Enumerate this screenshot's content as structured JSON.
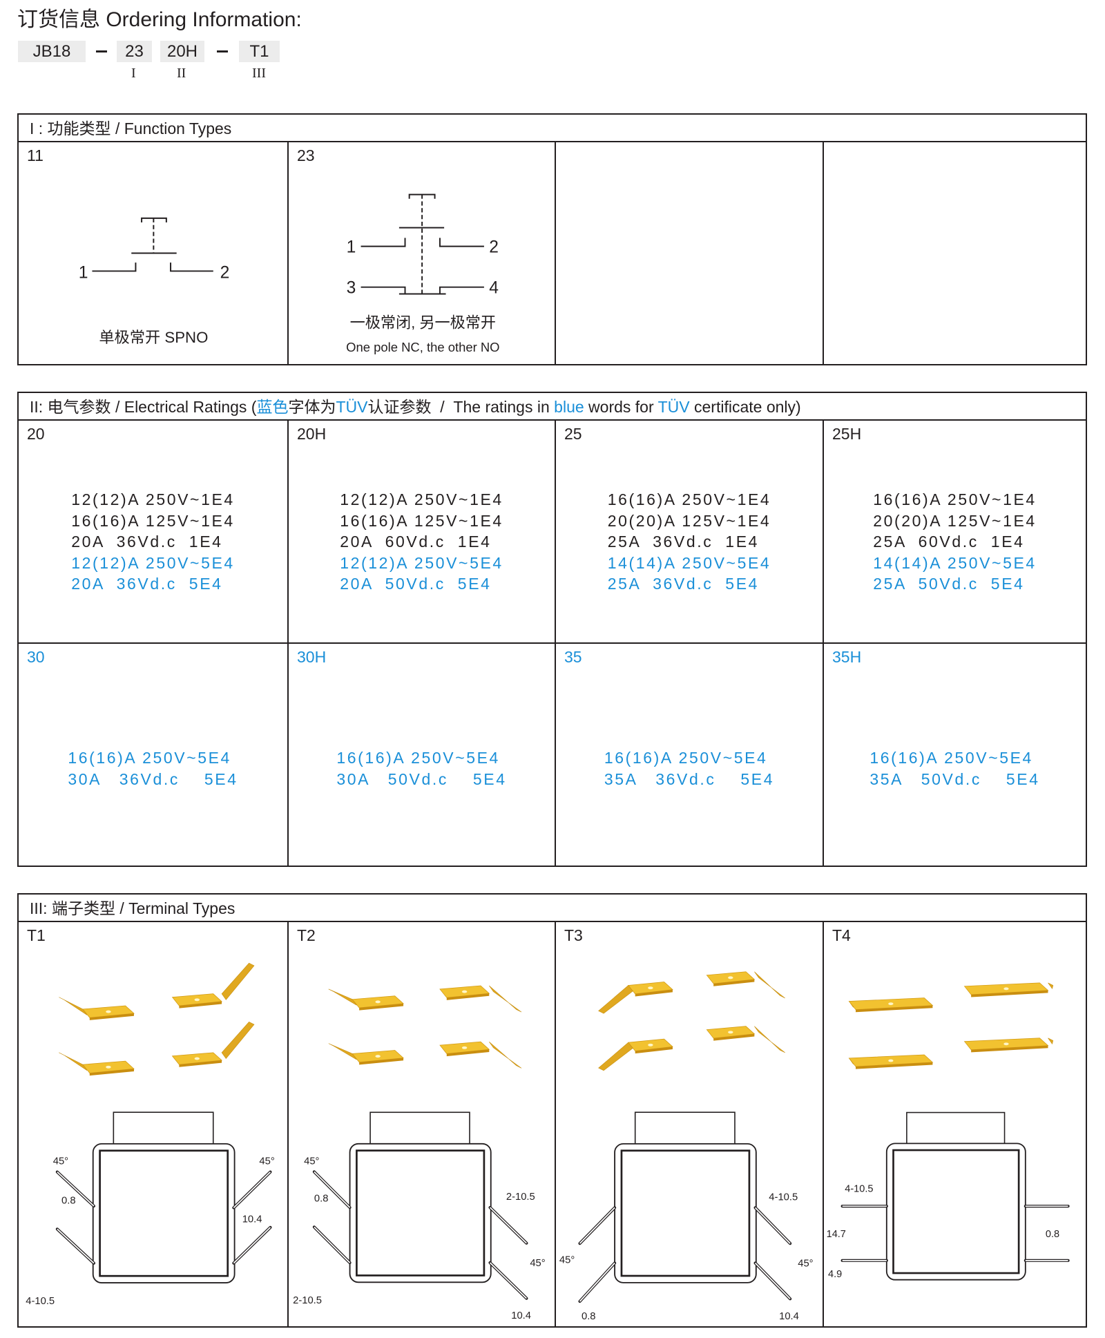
{
  "title": "订货信息 Ordering Information:",
  "code": {
    "parts": [
      "JB18",
      "23",
      "20H",
      "T1"
    ],
    "roman": [
      "I",
      "II",
      "III"
    ]
  },
  "function_types": {
    "header": "I : 功能类型 / Function Types",
    "cells": [
      {
        "label": "11",
        "terminals": [
          "1",
          "2"
        ],
        "caption": "单极常开 SPNO"
      },
      {
        "label": "23",
        "terminals": [
          "1",
          "2",
          "3",
          "4"
        ],
        "caption": "一极常闭, 另一极常开",
        "caption2": "One pole NC, the other NO"
      }
    ]
  },
  "electrical": {
    "header_parts": [
      {
        "t": "II: 电气参数 / Electrical Ratings (",
        "blue": false
      },
      {
        "t": "蓝色",
        "blue": true
      },
      {
        "t": "字体为",
        "blue": false
      },
      {
        "t": "TÜV",
        "blue": true
      },
      {
        "t": "认证参数  /  The ratings in ",
        "blue": false
      },
      {
        "t": "blue",
        "blue": true
      },
      {
        "t": " words for ",
        "blue": false
      },
      {
        "t": "TÜV",
        "blue": true
      },
      {
        "t": " certificate only)",
        "blue": false
      }
    ],
    "rows": [
      [
        {
          "label": "20",
          "blue_label": false,
          "lines": [
            {
              "t": "12(12)A 250V~1E4",
              "blue": false
            },
            {
              "t": "16(16)A 125V~1E4",
              "blue": false
            },
            {
              "t": "20A  36Vd.c  1E4",
              "blue": false
            },
            {
              "t": "12(12)A 250V~5E4",
              "blue": true
            },
            {
              "t": "20A  36Vd.c  5E4",
              "blue": true
            }
          ]
        },
        {
          "label": "20H",
          "blue_label": false,
          "lines": [
            {
              "t": "12(12)A 250V~1E4",
              "blue": false
            },
            {
              "t": "16(16)A 125V~1E4",
              "blue": false
            },
            {
              "t": "20A  60Vd.c  1E4",
              "blue": false
            },
            {
              "t": "12(12)A 250V~5E4",
              "blue": true
            },
            {
              "t": "20A  50Vd.c  5E4",
              "blue": true
            }
          ]
        },
        {
          "label": "25",
          "blue_label": false,
          "lines": [
            {
              "t": "16(16)A 250V~1E4",
              "blue": false
            },
            {
              "t": "20(20)A 125V~1E4",
              "blue": false
            },
            {
              "t": "25A  36Vd.c  1E4",
              "blue": false
            },
            {
              "t": "14(14)A 250V~5E4",
              "blue": true
            },
            {
              "t": "25A  36Vd.c  5E4",
              "blue": true
            }
          ]
        },
        {
          "label": "25H",
          "blue_label": false,
          "lines": [
            {
              "t": "16(16)A 250V~1E4",
              "blue": false
            },
            {
              "t": "20(20)A 125V~1E4",
              "blue": false
            },
            {
              "t": "25A  60Vd.c  1E4",
              "blue": false
            },
            {
              "t": "14(14)A 250V~5E4",
              "blue": true
            },
            {
              "t": "25A  50Vd.c  5E4",
              "blue": true
            }
          ]
        }
      ],
      [
        {
          "label": "30",
          "blue_label": true,
          "lines": [
            {
              "t": "16(16)A 250V~5E4",
              "blue": true
            },
            {
              "t": "30A   36Vd.c    5E4",
              "blue": true
            }
          ]
        },
        {
          "label": "30H",
          "blue_label": true,
          "lines": [
            {
              "t": "16(16)A 250V~5E4",
              "blue": true
            },
            {
              "t": "30A   50Vd.c    5E4",
              "blue": true
            }
          ]
        },
        {
          "label": "35",
          "blue_label": true,
          "lines": [
            {
              "t": "16(16)A 250V~5E4",
              "blue": true
            },
            {
              "t": "35A   36Vd.c    5E4",
              "blue": true
            }
          ]
        },
        {
          "label": "35H",
          "blue_label": true,
          "lines": [
            {
              "t": "16(16)A 250V~5E4",
              "blue": true
            },
            {
              "t": "35A   50Vd.c    5E4",
              "blue": true
            }
          ]
        }
      ]
    ]
  },
  "terminal_types": {
    "header": "III: 端子类型 / Terminal Types",
    "cells": [
      {
        "label": "T1",
        "dims": [
          "45°",
          "45°",
          "0.8",
          "4-10.5",
          "10.4"
        ]
      },
      {
        "label": "T2",
        "dims": [
          "45°",
          "0.8",
          "2-10.5",
          "2-10.5",
          "45°",
          "10.4"
        ]
      },
      {
        "label": "T3",
        "dims": [
          "45°",
          "0.8",
          "4-10.5",
          "45°",
          "10.4"
        ]
      },
      {
        "label": "T4",
        "dims": [
          "4-10.5",
          "14.7",
          "4.9",
          "0.8"
        ]
      }
    ]
  },
  "colors": {
    "text": "#231f20",
    "blue": "#1a8fd8",
    "terminal_gold": "#f2c230",
    "code_box": "#ececec"
  }
}
